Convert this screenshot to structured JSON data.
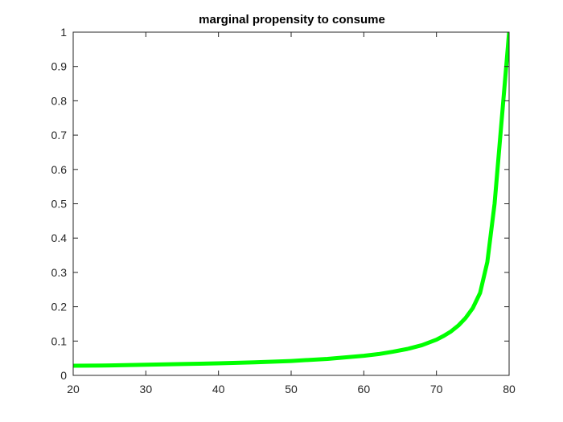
{
  "chart_data": {
    "type": "line",
    "title": "marginal propensity to consume",
    "xlabel": "",
    "ylabel": "",
    "xlim": [
      20,
      80
    ],
    "ylim": [
      0,
      1
    ],
    "x_ticks": [
      20,
      30,
      40,
      50,
      60,
      70,
      80
    ],
    "x_tick_labels": [
      "20",
      "30",
      "40",
      "50",
      "60",
      "70",
      "80"
    ],
    "y_ticks": [
      0,
      0.1,
      0.2,
      0.3,
      0.4,
      0.5,
      0.6,
      0.7,
      0.8,
      0.9,
      1
    ],
    "y_tick_labels": [
      "0",
      "0.1",
      "0.2",
      "0.3",
      "0.4",
      "0.5",
      "0.6",
      "0.7",
      "0.8",
      "0.9",
      "1"
    ],
    "grid": false,
    "series": [
      {
        "color": "#00ff00",
        "x": [
          20,
          25,
          30,
          35,
          40,
          45,
          50,
          55,
          60,
          62,
          64,
          66,
          68,
          70,
          71,
          72,
          73,
          74,
          75,
          76,
          77,
          78,
          79,
          80
        ],
        "y": [
          0.028,
          0.029,
          0.031,
          0.033,
          0.035,
          0.038,
          0.042,
          0.048,
          0.057,
          0.062,
          0.069,
          0.077,
          0.088,
          0.104,
          0.115,
          0.128,
          0.145,
          0.167,
          0.196,
          0.24,
          0.33,
          0.5,
          0.75,
          1.0
        ]
      }
    ]
  }
}
